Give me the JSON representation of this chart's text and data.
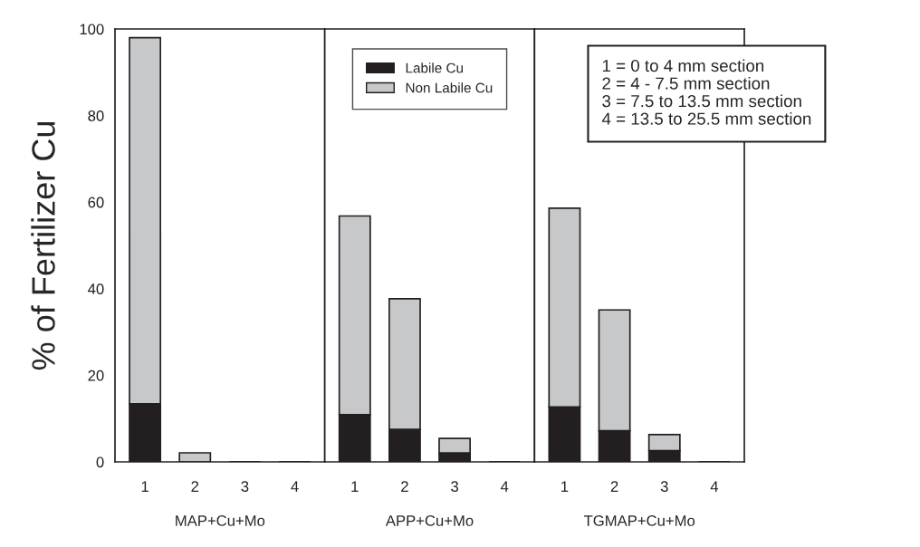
{
  "chart_data": [
    {
      "type": "bar",
      "stacked": true,
      "ylabel": "% of Fertilizer Cu",
      "xlabel": "MAP+Cu+Mo",
      "categories": [
        "1",
        "2",
        "3",
        "4"
      ],
      "ylim": [
        0,
        100
      ],
      "yticks": [
        0,
        20,
        40,
        60,
        80,
        100
      ],
      "grid": false,
      "legend": false,
      "series": [
        {
          "color": "#231f20",
          "values": [
            13.4,
            null,
            0,
            0
          ]
        },
        {
          "color": "#c7c8ca",
          "values": [
            84.6,
            2.1,
            0,
            0
          ]
        }
      ]
    },
    {
      "type": "bar",
      "stacked": true,
      "xlabel": "APP+Cu+Mo",
      "categories": [
        "1",
        "2",
        "3",
        "4"
      ],
      "ylim": [
        0,
        100
      ],
      "tick_labels": "x",
      "grid": false,
      "legend": "top",
      "series": [
        {
          "name": "Labile Cu",
          "color": "#231f20",
          "values": [
            10.9,
            7.5,
            2.1,
            0
          ]
        },
        {
          "name": "Non Labile Cu",
          "color": "#c7c8ca",
          "values": [
            45.9,
            30.2,
            3.3,
            0
          ]
        }
      ]
    },
    {
      "type": "bar",
      "stacked": true,
      "xlabel": "TGMAP+Cu+Mo",
      "categories": [
        "1",
        "2",
        "3",
        "4"
      ],
      "ylim": [
        0,
        100
      ],
      "tick_labels": "x",
      "grid": false,
      "legend": false,
      "annotations": [
        "1 = 0 to 4 mm section\n2 = 4 - 7.5 mm section\n3 = 7.5 to 13.5 mm section\n4 = 13.5 to 25.5 mm section"
      ],
      "series": [
        {
          "color": "#231f20",
          "values": [
            12.7,
            7.2,
            2.6,
            0
          ]
        },
        {
          "color": "#c7c8ca",
          "values": [
            45.9,
            27.9,
            3.7,
            0
          ]
        }
      ]
    }
  ]
}
